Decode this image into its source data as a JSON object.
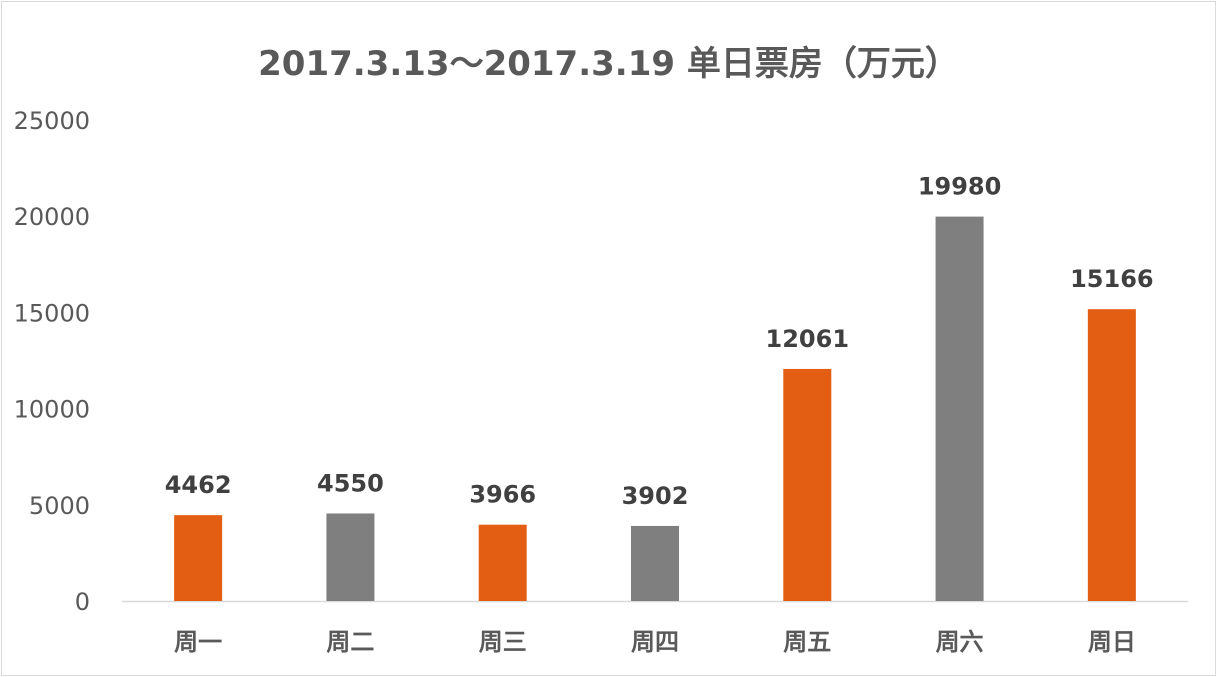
{
  "chart_data": {
    "type": "bar",
    "title": "2017.3.13～2017.3.19 单日票房（万元）",
    "categories": [
      "周一",
      "周二",
      "周三",
      "周四",
      "周五",
      "周六",
      "周日"
    ],
    "values": [
      4462,
      4550,
      3966,
      3902,
      12061,
      19980,
      15166
    ],
    "bar_colors": [
      "#e35d12",
      "#7f7f7f",
      "#e35d12",
      "#7f7f7f",
      "#e35d12",
      "#7f7f7f",
      "#e35d12"
    ],
    "ylim": [
      0,
      25000
    ],
    "yticks": [
      0,
      5000,
      10000,
      15000,
      20000,
      25000
    ],
    "grid": false,
    "legend": "none",
    "data_labels": true
  }
}
